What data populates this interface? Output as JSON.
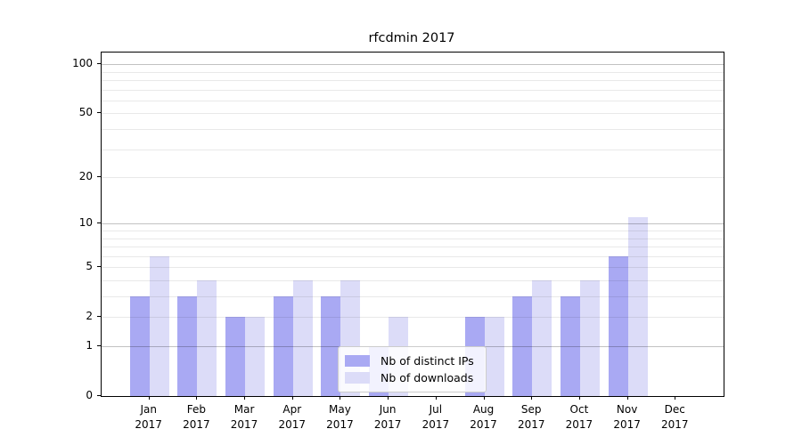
{
  "chart_data": {
    "type": "bar",
    "title": "rfcdmin 2017",
    "categories": [
      "Jan",
      "Feb",
      "Mar",
      "Apr",
      "May",
      "Jun",
      "Jul",
      "Aug",
      "Sep",
      "Oct",
      "Nov",
      "Dec"
    ],
    "year": "2017",
    "series": [
      {
        "name": "Nb of distinct IPs",
        "color": "#a9a9f3",
        "values": [
          3,
          3,
          2,
          3,
          3,
          1,
          0,
          2,
          3,
          3,
          6,
          0
        ]
      },
      {
        "name": "Nb of downloads",
        "color": "#dcdcf8",
        "values": [
          6,
          4,
          2,
          4,
          4,
          2,
          0,
          2,
          4,
          4,
          11,
          0
        ]
      }
    ],
    "xlabel": "",
    "ylabel": "",
    "y_axis": {
      "scale": "log10(1+x)",
      "tick_values": [
        0,
        1,
        2,
        5,
        10,
        20,
        50,
        100
      ],
      "major_gridlines": [
        1,
        10,
        100
      ],
      "minor_gridlines": [
        2,
        3,
        4,
        5,
        6,
        7,
        8,
        9,
        20,
        30,
        40,
        50,
        60,
        70,
        80,
        90
      ],
      "ylim": [
        0,
        118
      ]
    },
    "grid": true,
    "legend": {
      "position": "lower center",
      "entries": [
        "Nb of distinct IPs",
        "Nb of downloads"
      ]
    }
  }
}
